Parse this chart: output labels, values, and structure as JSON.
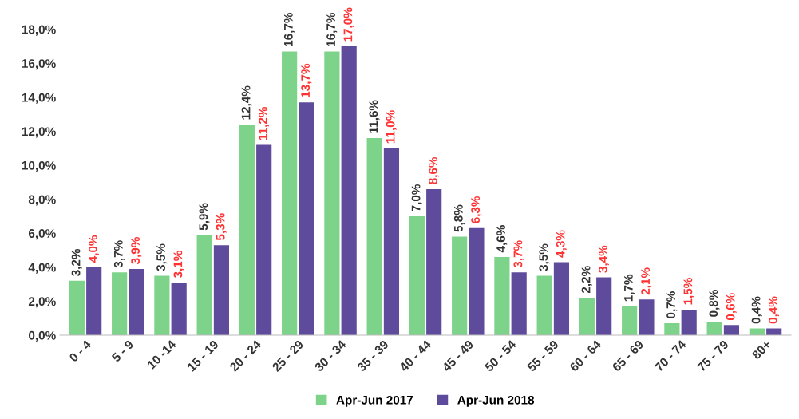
{
  "chart_data": {
    "type": "bar",
    "categories": [
      "0 - 4",
      "5 - 9",
      "10 -14",
      "15 - 19",
      "20 - 24",
      "25 - 29",
      "30 - 34",
      "35 - 39",
      "40 - 44",
      "45 - 49",
      "50 - 54",
      "55 - 59",
      "60 - 64",
      "65 - 69",
      "70 - 74",
      "75 - 79",
      "80+"
    ],
    "series": [
      {
        "name": "Apr-Jun 2017",
        "color": "#7dd38a",
        "values": [
          3.2,
          3.7,
          3.5,
          5.9,
          12.4,
          16.7,
          16.7,
          11.6,
          7.0,
          5.8,
          4.6,
          3.5,
          2.2,
          1.7,
          0.7,
          0.8,
          0.4
        ],
        "value_labels": [
          "3,2%",
          "3,7%",
          "3,5%",
          "5,9%",
          "12,4%",
          "16,7%",
          "16,7%",
          "11,6%",
          "7,0%",
          "5,8%",
          "4,6%",
          "3,5%",
          "2,2%",
          "1,7%",
          "0,7%",
          "0,8%",
          "0,4%"
        ]
      },
      {
        "name": "Apr-Jun 2018",
        "color": "#5e4b9c",
        "values": [
          4.0,
          3.9,
          3.1,
          5.3,
          11.2,
          13.7,
          17.0,
          11.0,
          8.6,
          6.3,
          3.7,
          4.3,
          3.4,
          2.1,
          1.5,
          0.6,
          0.4
        ],
        "value_labels": [
          "4,0%",
          "3,9%",
          "3,1%",
          "5,3%",
          "11,2%",
          "13,7%",
          "17,0%",
          "11,0%",
          "8,6%",
          "6,3%",
          "3,7%",
          "4,3%",
          "3,4%",
          "2,1%",
          "1,5%",
          "0,6%",
          "0,4%"
        ]
      }
    ],
    "ylim": [
      0,
      18
    ],
    "yticks": [
      {
        "value": 0,
        "label": "0,0%"
      },
      {
        "value": 2,
        "label": "2,0%"
      },
      {
        "value": 4,
        "label": "4,0%"
      },
      {
        "value": 6,
        "label": "6,0%"
      },
      {
        "value": 8,
        "label": "8,0%"
      },
      {
        "value": 10,
        "label": "10,0%"
      },
      {
        "value": 12,
        "label": "12,0%"
      },
      {
        "value": 14,
        "label": "14,0%"
      },
      {
        "value": 16,
        "label": "16,0%"
      },
      {
        "value": 18,
        "label": "18,0%"
      }
    ],
    "grid": false,
    "legend": "bottom"
  }
}
